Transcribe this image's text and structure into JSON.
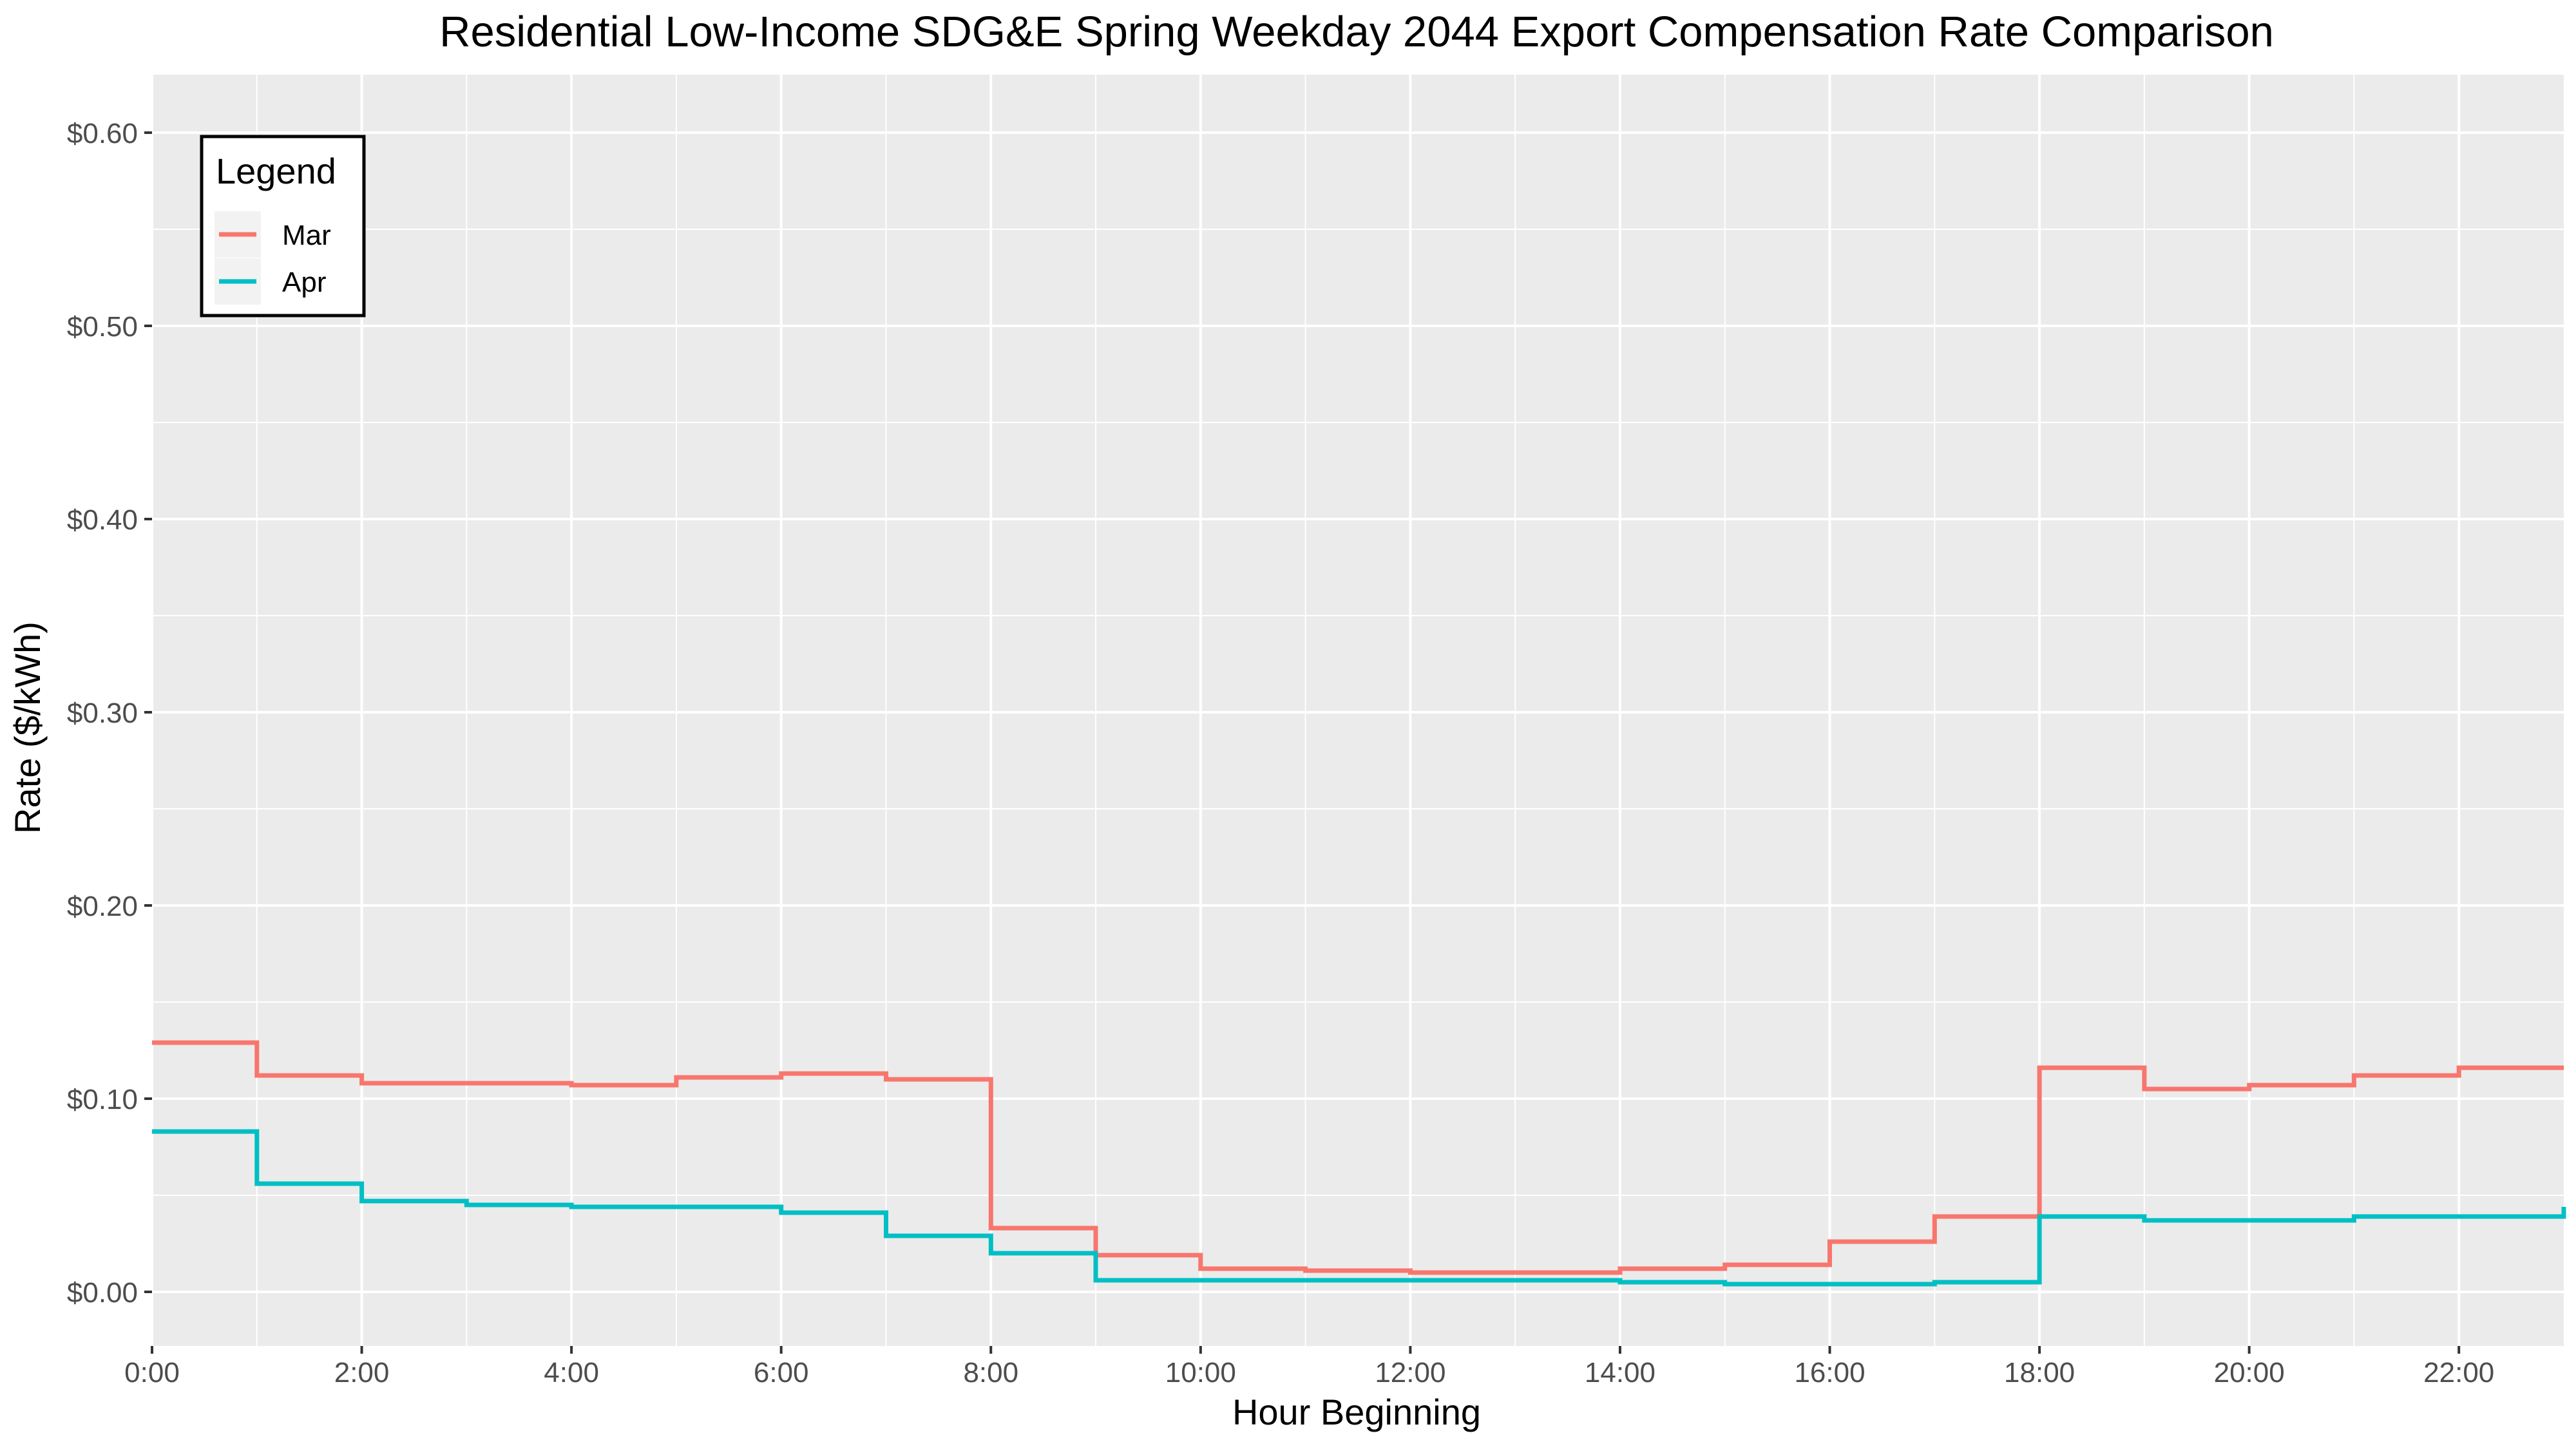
{
  "chart_data": {
    "type": "line",
    "step": true,
    "title": "Residential Low-Income SDG&E Spring Weekday 2044 Export Compensation Rate Comparison",
    "xlabel": "Hour Beginning",
    "ylabel": "Rate ($/kWh)",
    "xlim": [
      0,
      23
    ],
    "ylim": [
      -0.028,
      0.63
    ],
    "x": [
      0,
      1,
      2,
      3,
      4,
      5,
      6,
      7,
      8,
      9,
      10,
      11,
      12,
      13,
      14,
      15,
      16,
      17,
      18,
      19,
      20,
      21,
      22,
      23
    ],
    "x_ticks": [
      0,
      2,
      4,
      6,
      8,
      10,
      12,
      14,
      16,
      18,
      20,
      22
    ],
    "x_tick_labels": [
      "0:00",
      "2:00",
      "4:00",
      "6:00",
      "8:00",
      "10:00",
      "12:00",
      "14:00",
      "16:00",
      "18:00",
      "20:00",
      "22:00"
    ],
    "y_ticks": [
      0,
      0.1,
      0.2,
      0.3,
      0.4,
      0.5,
      0.6
    ],
    "y_tick_labels": [
      "$0.00",
      "$0.10",
      "$0.20",
      "$0.30",
      "$0.40",
      "$0.50",
      "$0.60"
    ],
    "grid": true,
    "legend": {
      "title": "Legend",
      "position": "top-left"
    },
    "series": [
      {
        "name": "Mar",
        "color": "#F8766D",
        "values": [
          0.129,
          0.112,
          0.108,
          0.108,
          0.107,
          0.111,
          0.113,
          0.11,
          0.033,
          0.019,
          0.012,
          0.011,
          0.01,
          0.01,
          0.012,
          0.014,
          0.026,
          0.039,
          0.116,
          0.105,
          0.107,
          0.112,
          0.116,
          0.116
        ]
      },
      {
        "name": "Apr",
        "color": "#00BFC4",
        "values": [
          0.083,
          0.056,
          0.047,
          0.045,
          0.044,
          0.044,
          0.041,
          0.029,
          0.02,
          0.006,
          0.006,
          0.006,
          0.006,
          0.006,
          0.005,
          0.004,
          0.004,
          0.005,
          0.039,
          0.037,
          0.037,
          0.039,
          0.039,
          0.044
        ]
      }
    ]
  }
}
